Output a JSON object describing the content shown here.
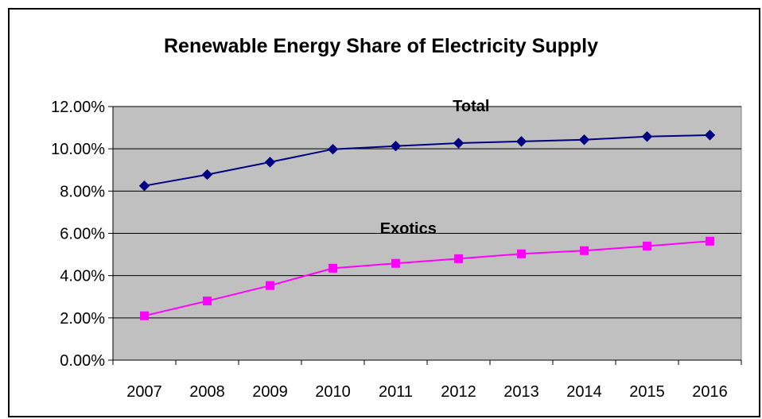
{
  "chart_data": {
    "type": "line",
    "title": "Renewable Energy Share of Electricity Supply",
    "xlabel": "",
    "ylabel": "",
    "categories": [
      "2007",
      "2008",
      "2009",
      "2010",
      "2011",
      "2012",
      "2013",
      "2014",
      "2015",
      "2016"
    ],
    "y_ticks": [
      "0.00%",
      "2.00%",
      "4.00%",
      "6.00%",
      "8.00%",
      "10.00%",
      "12.00%"
    ],
    "ylim": [
      0,
      0.12
    ],
    "grid": "horizontal",
    "plot_background": "#c0c0c0",
    "series": [
      {
        "name": "Total",
        "color": "#000080",
        "marker": "diamond",
        "values": [
          0.0825,
          0.0878,
          0.0937,
          0.0998,
          0.1013,
          0.1027,
          0.1035,
          0.1043,
          0.1058,
          0.1065
        ]
      },
      {
        "name": "Exotics",
        "color": "#ff00ff",
        "marker": "square",
        "values": [
          0.021,
          0.028,
          0.0353,
          0.0435,
          0.0458,
          0.048,
          0.0503,
          0.0518,
          0.054,
          0.0563
        ]
      }
    ]
  }
}
